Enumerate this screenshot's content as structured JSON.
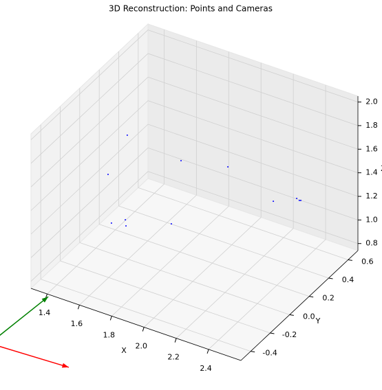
{
  "chart_data": {
    "type": "scatter3d",
    "title": "3D Reconstruction: Points and Cameras",
    "xlabel": "X",
    "ylabel": "Y",
    "zlabel": "Z",
    "x": [
      1.534,
      1.867,
      2.157,
      1.415,
      2.366,
      2.511,
      2.527,
      2.536,
      1.522,
      1.436,
      1.526,
      1.807
    ],
    "y": [
      0.1,
      0.1,
      0.1,
      0.1,
      0.22,
      0.22,
      0.22,
      0.22,
      0.1,
      0.1,
      0.1,
      0.1
    ],
    "z": [
      1.683,
      1.624,
      1.708,
      1.295,
      1.421,
      1.513,
      1.504,
      1.508,
      0.96,
      0.892,
      0.91,
      1.06
    ],
    "color": "#0000ff",
    "quivers": [
      {
        "origin": [
          1.044,
          -0.5,
          0.153
        ],
        "vector": [
          0.49,
          0,
          0.028
        ],
        "color": "#ff0000"
      },
      {
        "origin": [
          1.044,
          -0.5,
          0.153
        ],
        "vector": [
          0.363,
          0,
          0.567
        ],
        "color": "#008000"
      }
    ],
    "xlim": [
      1.3,
      2.6
    ],
    "ylim": [
      -0.5,
      0.7
    ],
    "zlim": [
      0.74,
      2.05
    ],
    "xticks": [
      1.4,
      1.6,
      1.8,
      2.0,
      2.2,
      2.4
    ],
    "yticks": [
      -0.4,
      -0.2,
      0.0,
      0.2,
      0.4,
      0.6
    ],
    "zticks": [
      0.8,
      1.0,
      1.2,
      1.4,
      1.6,
      1.8,
      2.0
    ],
    "grid": true
  }
}
